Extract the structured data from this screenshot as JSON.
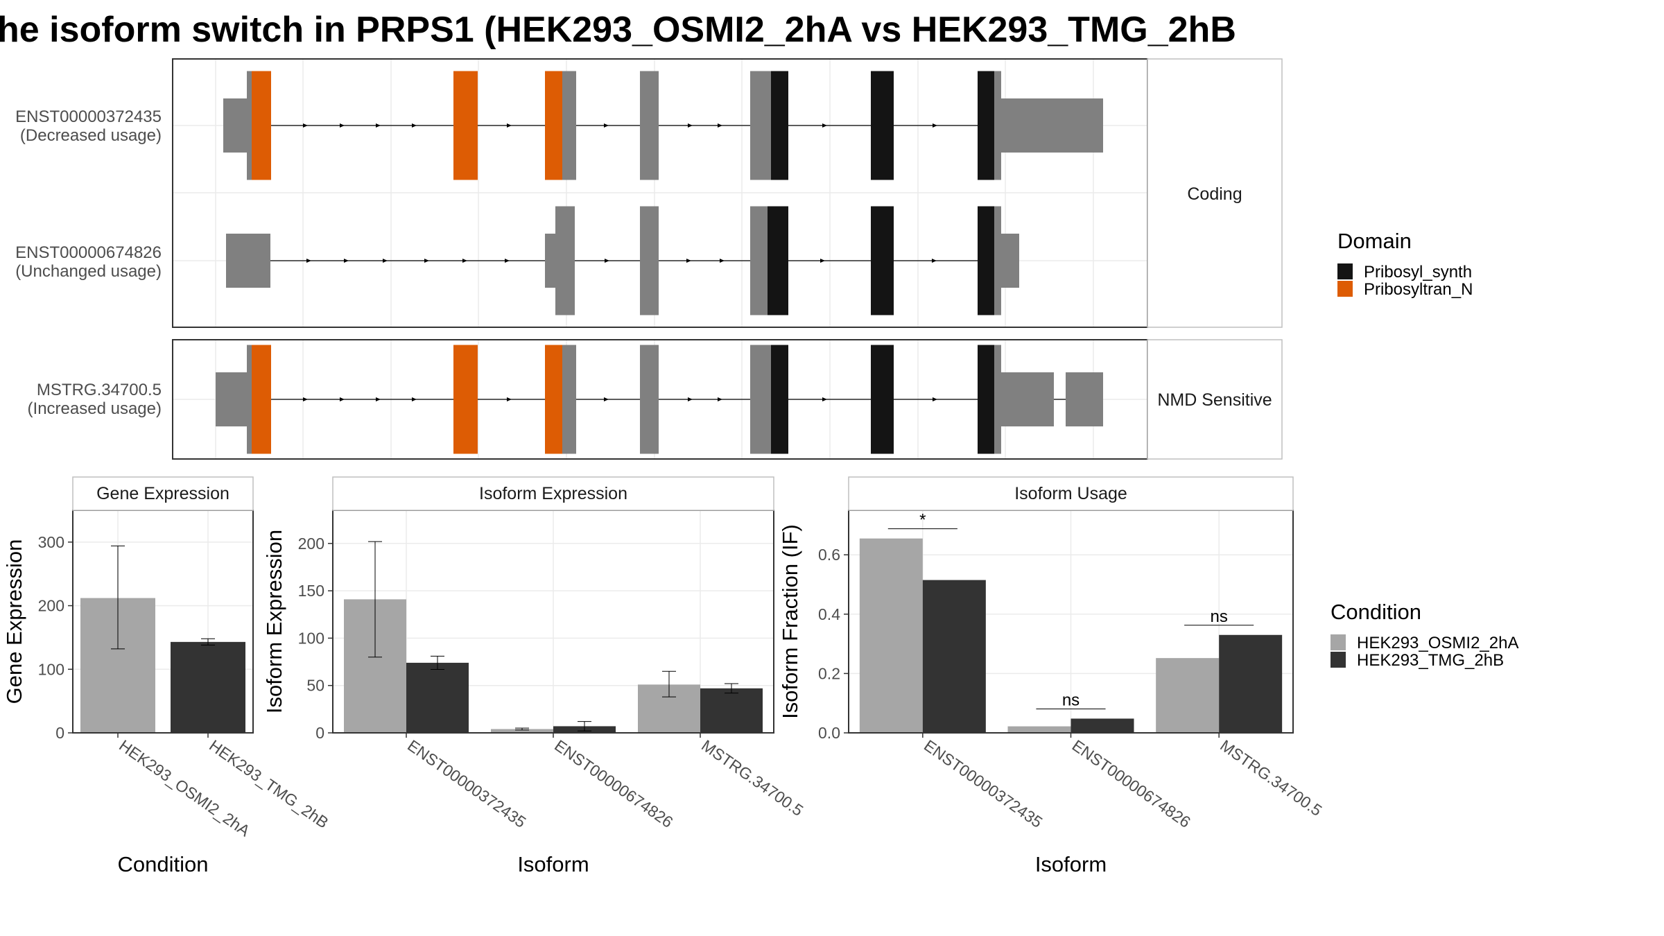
{
  "title": "he isoform switch in PRPS1 (HEK293_OSMI2_2hA vs HEK293_TMG_2hB",
  "colors": {
    "cond1": "#a6a6a6",
    "cond2": "#333333",
    "exon": "#808080",
    "pribosyl_synth": "#141414",
    "pribosyltran_n": "#dd5c04",
    "grid": "#ebebeb",
    "panel_border": "#333333",
    "strip_fill": "#ffffff",
    "strip_border": "#bfbfbf"
  },
  "structure": {
    "panels": [
      {
        "label": "Coding",
        "transcripts": [
          {
            "id": "ENST00000372435",
            "usage": "(Decreased usage)"
          },
          {
            "id": "ENST00000674826",
            "usage": "(Unchanged usage)"
          }
        ]
      },
      {
        "label": "NMD Sensitive",
        "transcripts": [
          {
            "id": "MSTRG.34700.5",
            "usage": "(Increased usage)"
          }
        ]
      }
    ],
    "legend": {
      "title": "Domain",
      "items": [
        {
          "label": "Pribosyl_synth",
          "color": "#141414"
        },
        {
          "label": "Pribosyltran_N",
          "color": "#dd5c04"
        }
      ]
    }
  },
  "chart_data": [
    {
      "type": "bar",
      "strip": "Gene Expression",
      "xlabel": "Condition",
      "ylabel": "Gene Expression",
      "ylim": [
        0,
        350
      ],
      "yticks": [
        0,
        100,
        200,
        300
      ],
      "categories": [
        "HEK293_OSMI2_2hA",
        "HEK293_TMG_2hB"
      ],
      "values": [
        212,
        143
      ],
      "errors": [
        [
          132,
          294
        ],
        [
          138,
          148
        ]
      ]
    },
    {
      "type": "bar",
      "strip": "Isoform Expression",
      "xlabel": "Isoform",
      "ylabel": "Isoform Expression",
      "ylim": [
        0,
        235
      ],
      "yticks": [
        0,
        50,
        100,
        150,
        200
      ],
      "categories": [
        "ENST00000372435",
        "ENST00000674826",
        "MSTRG.34700.5"
      ],
      "series": [
        {
          "name": "HEK293_OSMI2_2hA",
          "values": [
            141,
            4,
            51
          ],
          "errors": [
            [
              80,
              202
            ],
            [
              3,
              5
            ],
            [
              38,
              65
            ]
          ]
        },
        {
          "name": "HEK293_TMG_2hB",
          "values": [
            74,
            7,
            47
          ],
          "errors": [
            [
              67,
              81
            ],
            [
              2,
              12
            ],
            [
              42,
              52
            ]
          ]
        }
      ]
    },
    {
      "type": "bar",
      "strip": "Isoform Usage",
      "xlabel": "Isoform",
      "ylabel": "Isoform Fraction (IF)",
      "ylim": [
        0,
        0.75
      ],
      "yticks": [
        "0.0",
        "0.2",
        "0.4",
        "0.6"
      ],
      "categories": [
        "ENST00000372435",
        "ENST00000674826",
        "MSTRG.34700.5"
      ],
      "series": [
        {
          "name": "HEK293_OSMI2_2hA",
          "values": [
            0.655,
            0.022,
            0.252
          ]
        },
        {
          "name": "HEK293_TMG_2hB",
          "values": [
            0.515,
            0.048,
            0.33
          ]
        }
      ],
      "significance": [
        "*",
        "ns",
        "ns"
      ]
    }
  ],
  "condition_legend": {
    "title": "Condition",
    "items": [
      {
        "label": "HEK293_OSMI2_2hA",
        "color": "#a6a6a6"
      },
      {
        "label": "HEK293_TMG_2hB",
        "color": "#333333"
      }
    ]
  }
}
